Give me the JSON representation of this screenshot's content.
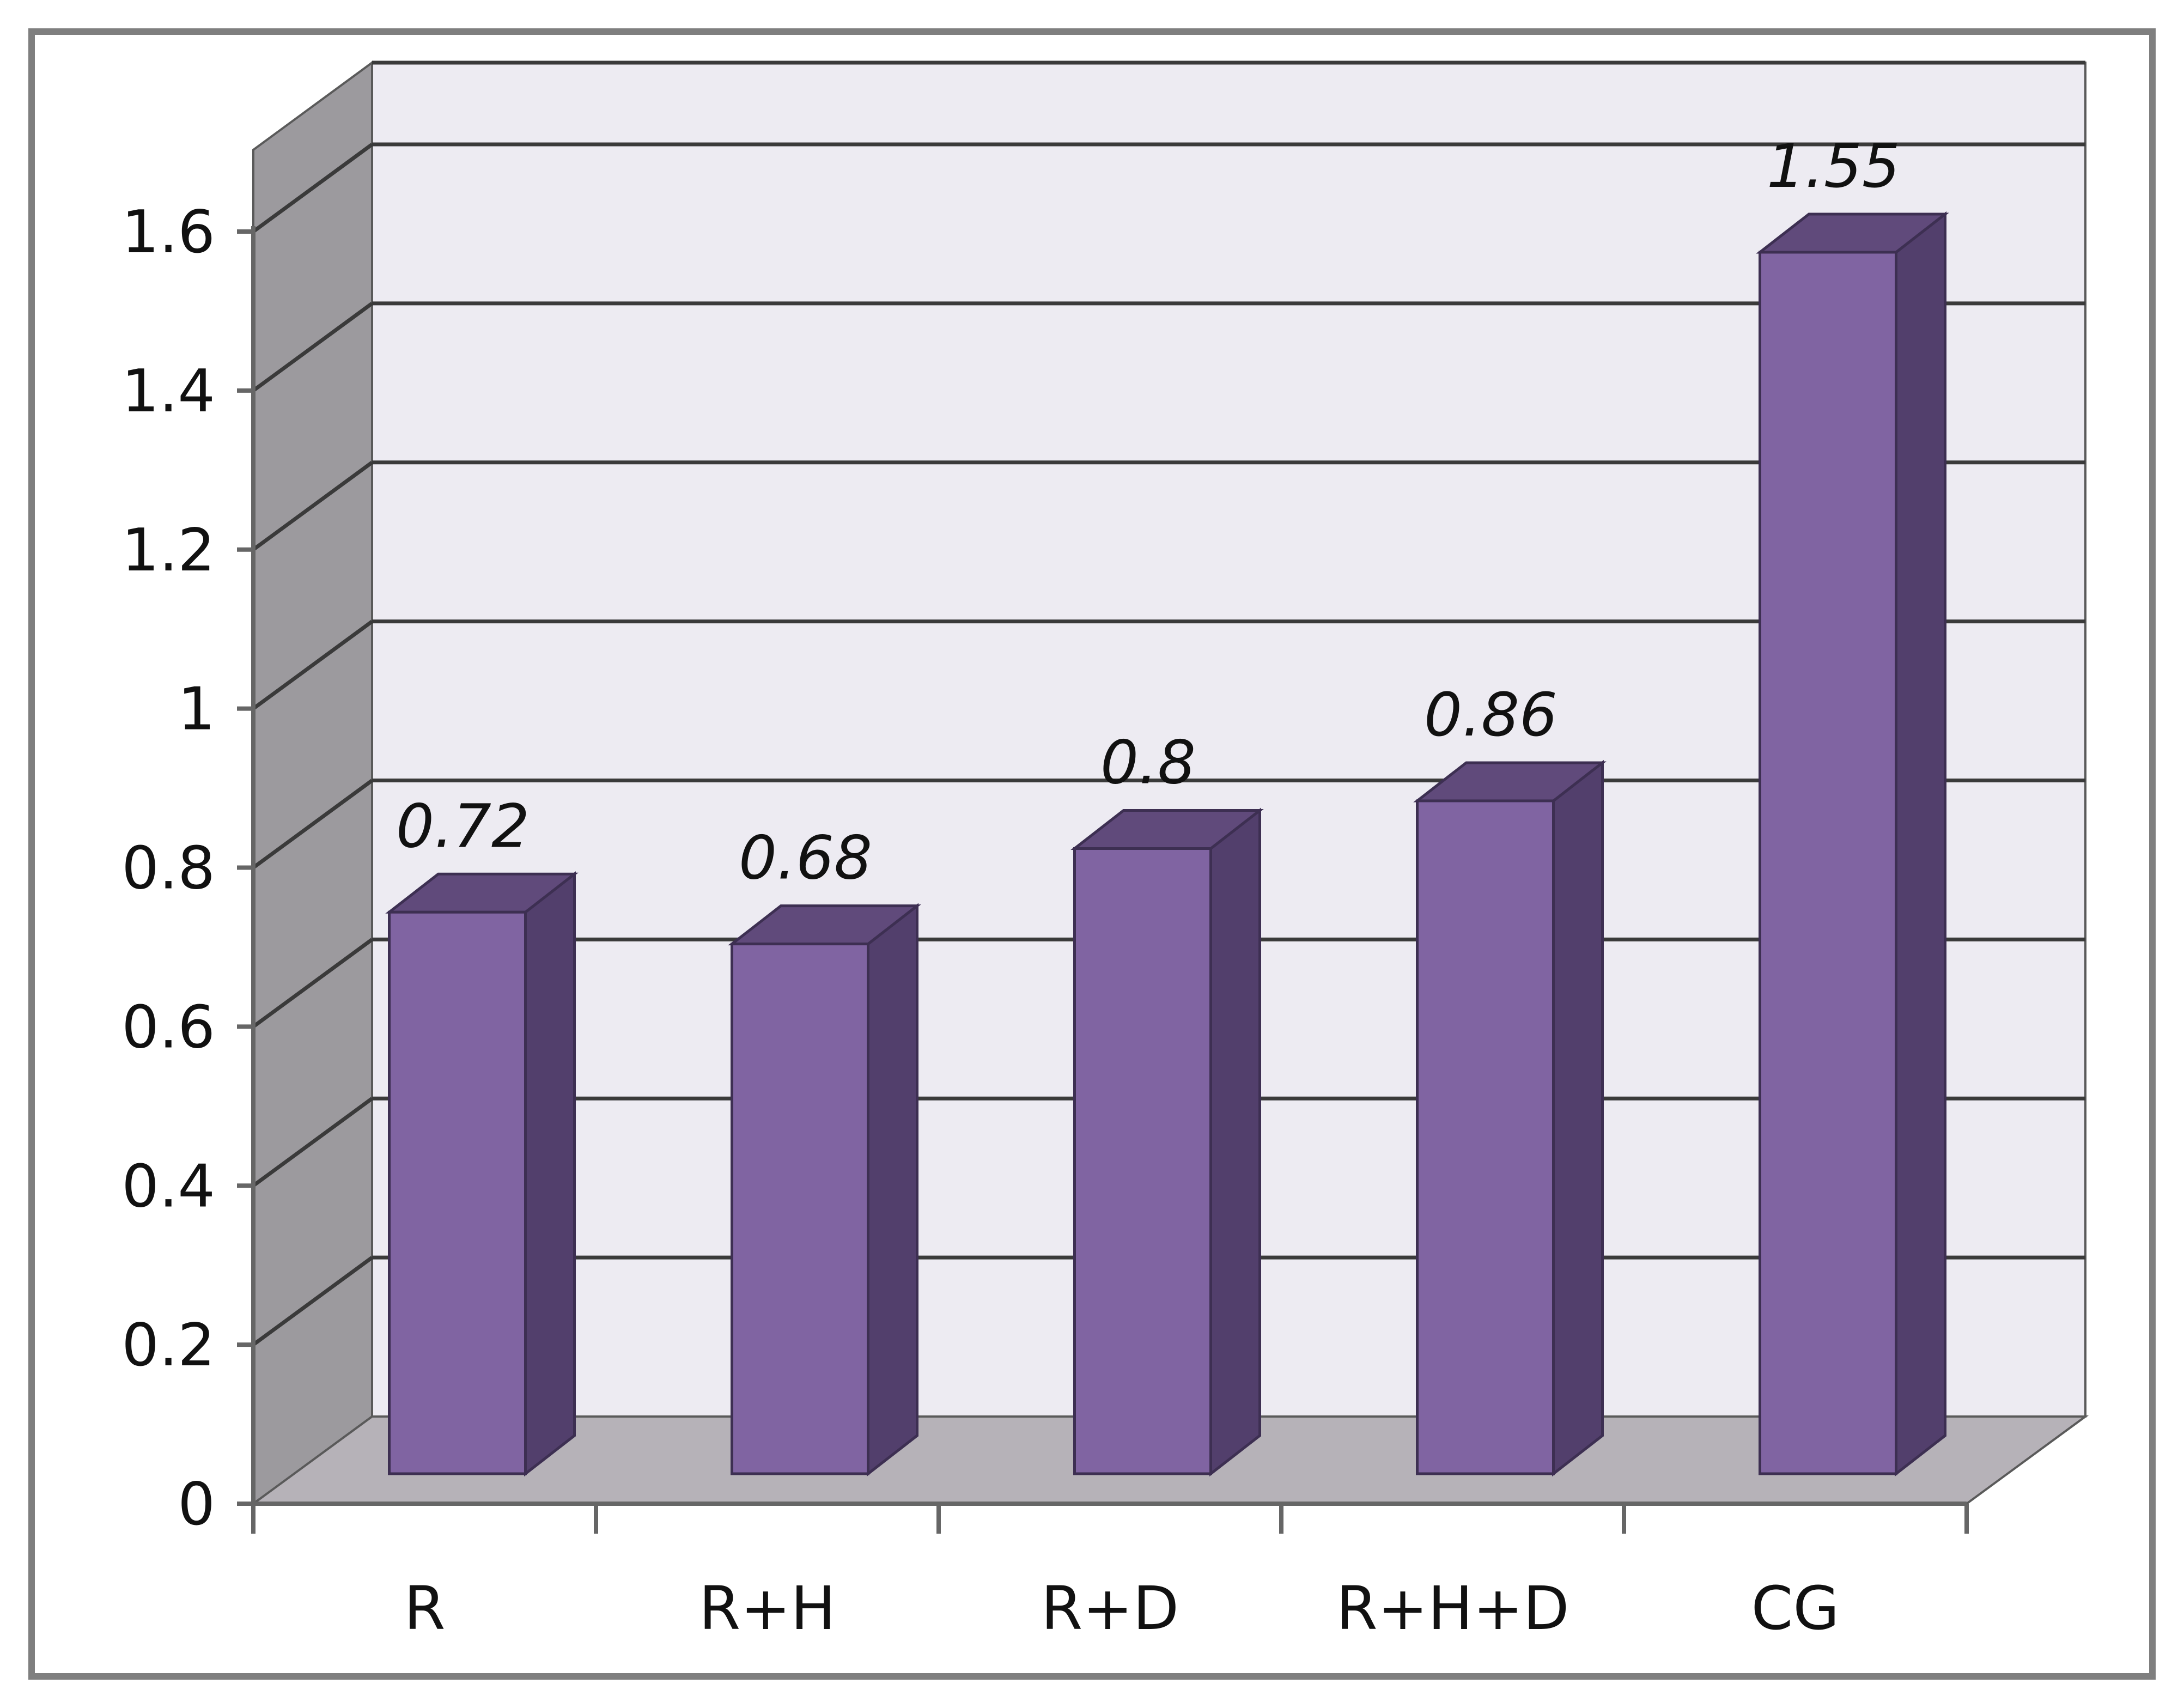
{
  "chart_data": {
    "type": "bar",
    "categories": [
      "R",
      "R+H",
      "R+D",
      "R+H+D",
      "CG"
    ],
    "values": [
      0.72,
      0.68,
      0.8,
      0.86,
      1.55
    ],
    "data_labels": [
      "0.72",
      "0.68",
      "0.8",
      "0.86",
      "1.55"
    ],
    "ylim": [
      0,
      1.6
    ],
    "yticks": [
      "0",
      "0.2",
      "0.4",
      "0.6",
      "0.8",
      "1",
      "1.2",
      "1.4",
      "1.6"
    ],
    "title": "",
    "xlabel": "",
    "ylabel": "",
    "grid": true,
    "three_d": true,
    "legend": "none"
  },
  "colors": {
    "bar_front": "#8064A2",
    "bar_side": "#523F6C",
    "bar_top": "#604A7B",
    "back_wall": "#EDEBF2",
    "side_wall": "#9C9A9E",
    "floor": "#B6B2B8",
    "gridline": "#3A3A3A",
    "frame": "#7F7F7F"
  }
}
